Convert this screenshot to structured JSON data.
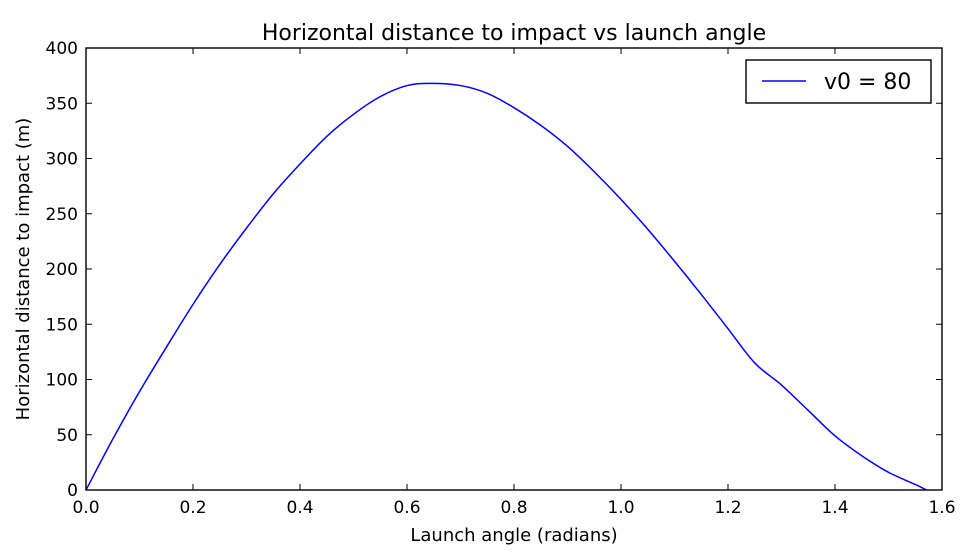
{
  "chart_data": {
    "type": "line",
    "title": "Horizontal distance to impact vs launch angle",
    "xlabel": "Launch angle (radians)",
    "ylabel": "Horizontal distance to impact (m)",
    "xlim": [
      0.0,
      1.6
    ],
    "ylim": [
      0,
      400
    ],
    "xticks": [
      0.0,
      0.2,
      0.4,
      0.6,
      0.8,
      1.0,
      1.2,
      1.4,
      1.6
    ],
    "xtick_labels": [
      "0.0",
      "0.2",
      "0.4",
      "0.6",
      "0.8",
      "1.0",
      "1.2",
      "1.4",
      "1.6"
    ],
    "yticks": [
      0,
      50,
      100,
      150,
      200,
      250,
      300,
      350,
      400
    ],
    "ytick_labels": [
      "0",
      "50",
      "100",
      "150",
      "200",
      "250",
      "300",
      "350",
      "400"
    ],
    "grid": false,
    "legend_position": "top-right",
    "series": [
      {
        "name": "v0 = 80",
        "color": "#0000ff",
        "x": [
          0.0,
          0.05,
          0.1,
          0.15,
          0.2,
          0.25,
          0.3,
          0.35,
          0.4,
          0.45,
          0.5,
          0.55,
          0.6,
          0.645,
          0.7,
          0.75,
          0.8,
          0.85,
          0.9,
          0.95,
          1.0,
          1.05,
          1.1,
          1.15,
          1.2,
          1.25,
          1.3,
          1.35,
          1.4,
          1.45,
          1.5,
          1.55,
          1.5708
        ],
        "y": [
          0,
          46,
          89,
          129,
          168,
          204,
          237,
          268,
          295,
          320,
          340,
          356,
          366,
          368,
          366,
          359,
          346,
          330,
          311,
          288,
          263,
          236,
          207,
          177,
          146,
          115,
          95,
          72,
          49,
          31,
          16,
          5,
          0
        ]
      }
    ]
  }
}
